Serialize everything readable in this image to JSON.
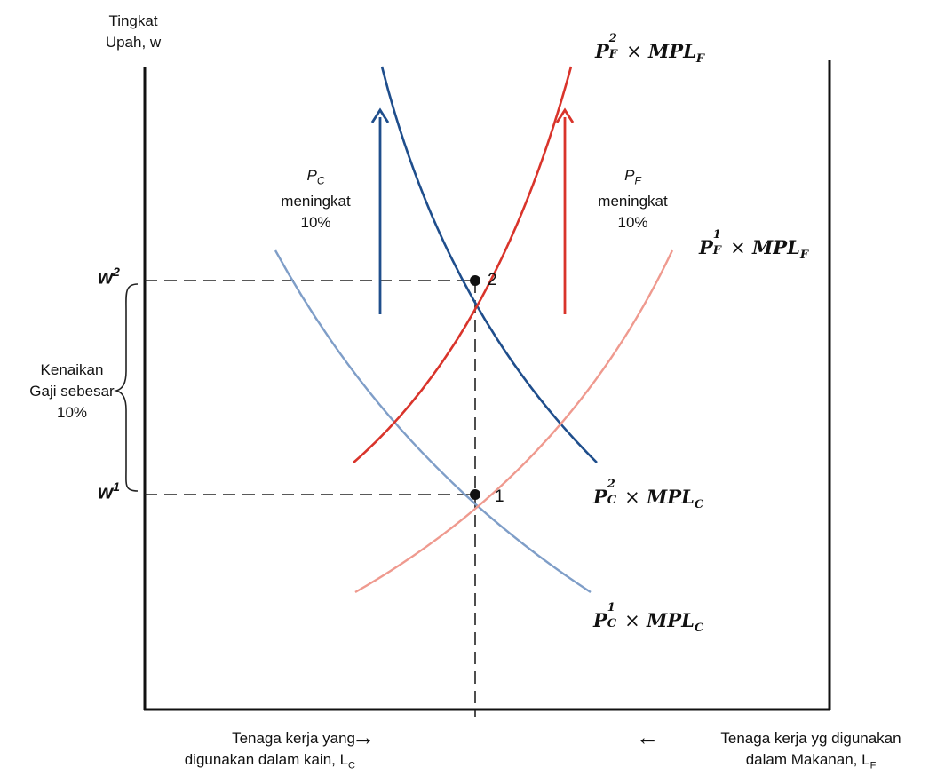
{
  "y_axis_label_line1": "Tingkat",
  "y_axis_label_line2": "Upah, w",
  "x_left_label_line1": "Tenaga kerja yang",
  "x_left_label_line2": "digunakan dalam kain, L",
  "x_left_label_sub": "C",
  "x_right_label_line1": "Tenaga kerja yg digunakan",
  "x_right_label_line2": "dalam Makanan, L",
  "x_right_label_sub": "F",
  "arrow_left_glyph": "→",
  "arrow_right_glyph": "←",
  "pc_label_symbol": "P",
  "pc_label_sub": "C",
  "pc_label_text": "meningkat",
  "pc_label_pct": "10%",
  "pf_label_symbol": "P",
  "pf_label_sub": "F",
  "pf_label_text": "meningkat",
  "pf_label_pct": "10%",
  "brace_label_line1": "Kenaikan",
  "brace_label_line2": "Gaji sebesar",
  "brace_label_line3": "10%",
  "w2_label": "w",
  "w2_sup": "2",
  "w1_label": "w",
  "w1_sup": "1",
  "point_2_label": "2",
  "point_1_label": "1",
  "curves": {
    "pf2": {
      "P": "P",
      "sup": "2",
      "sub": "F",
      "times": "×",
      "mpl": "MPL",
      "mpl_sub": "F"
    },
    "pf1": {
      "P": "P",
      "sup": "1",
      "sub": "F",
      "times": "×",
      "mpl": "MPL",
      "mpl_sub": "F"
    },
    "pc2": {
      "P": "P",
      "sup": "2",
      "sub": "C",
      "times": "×",
      "mpl": "MPL",
      "mpl_sub": "C"
    },
    "pc1": {
      "P": "P",
      "sup": "1",
      "sub": "C",
      "times": "×",
      "mpl": "MPL",
      "mpl_sub": "C"
    }
  },
  "colors": {
    "dark_blue": "#1f4e8c",
    "light_blue": "#7f9ec8",
    "dark_red": "#d9342b",
    "light_red": "#ef9a8f",
    "axis": "#111111"
  }
}
